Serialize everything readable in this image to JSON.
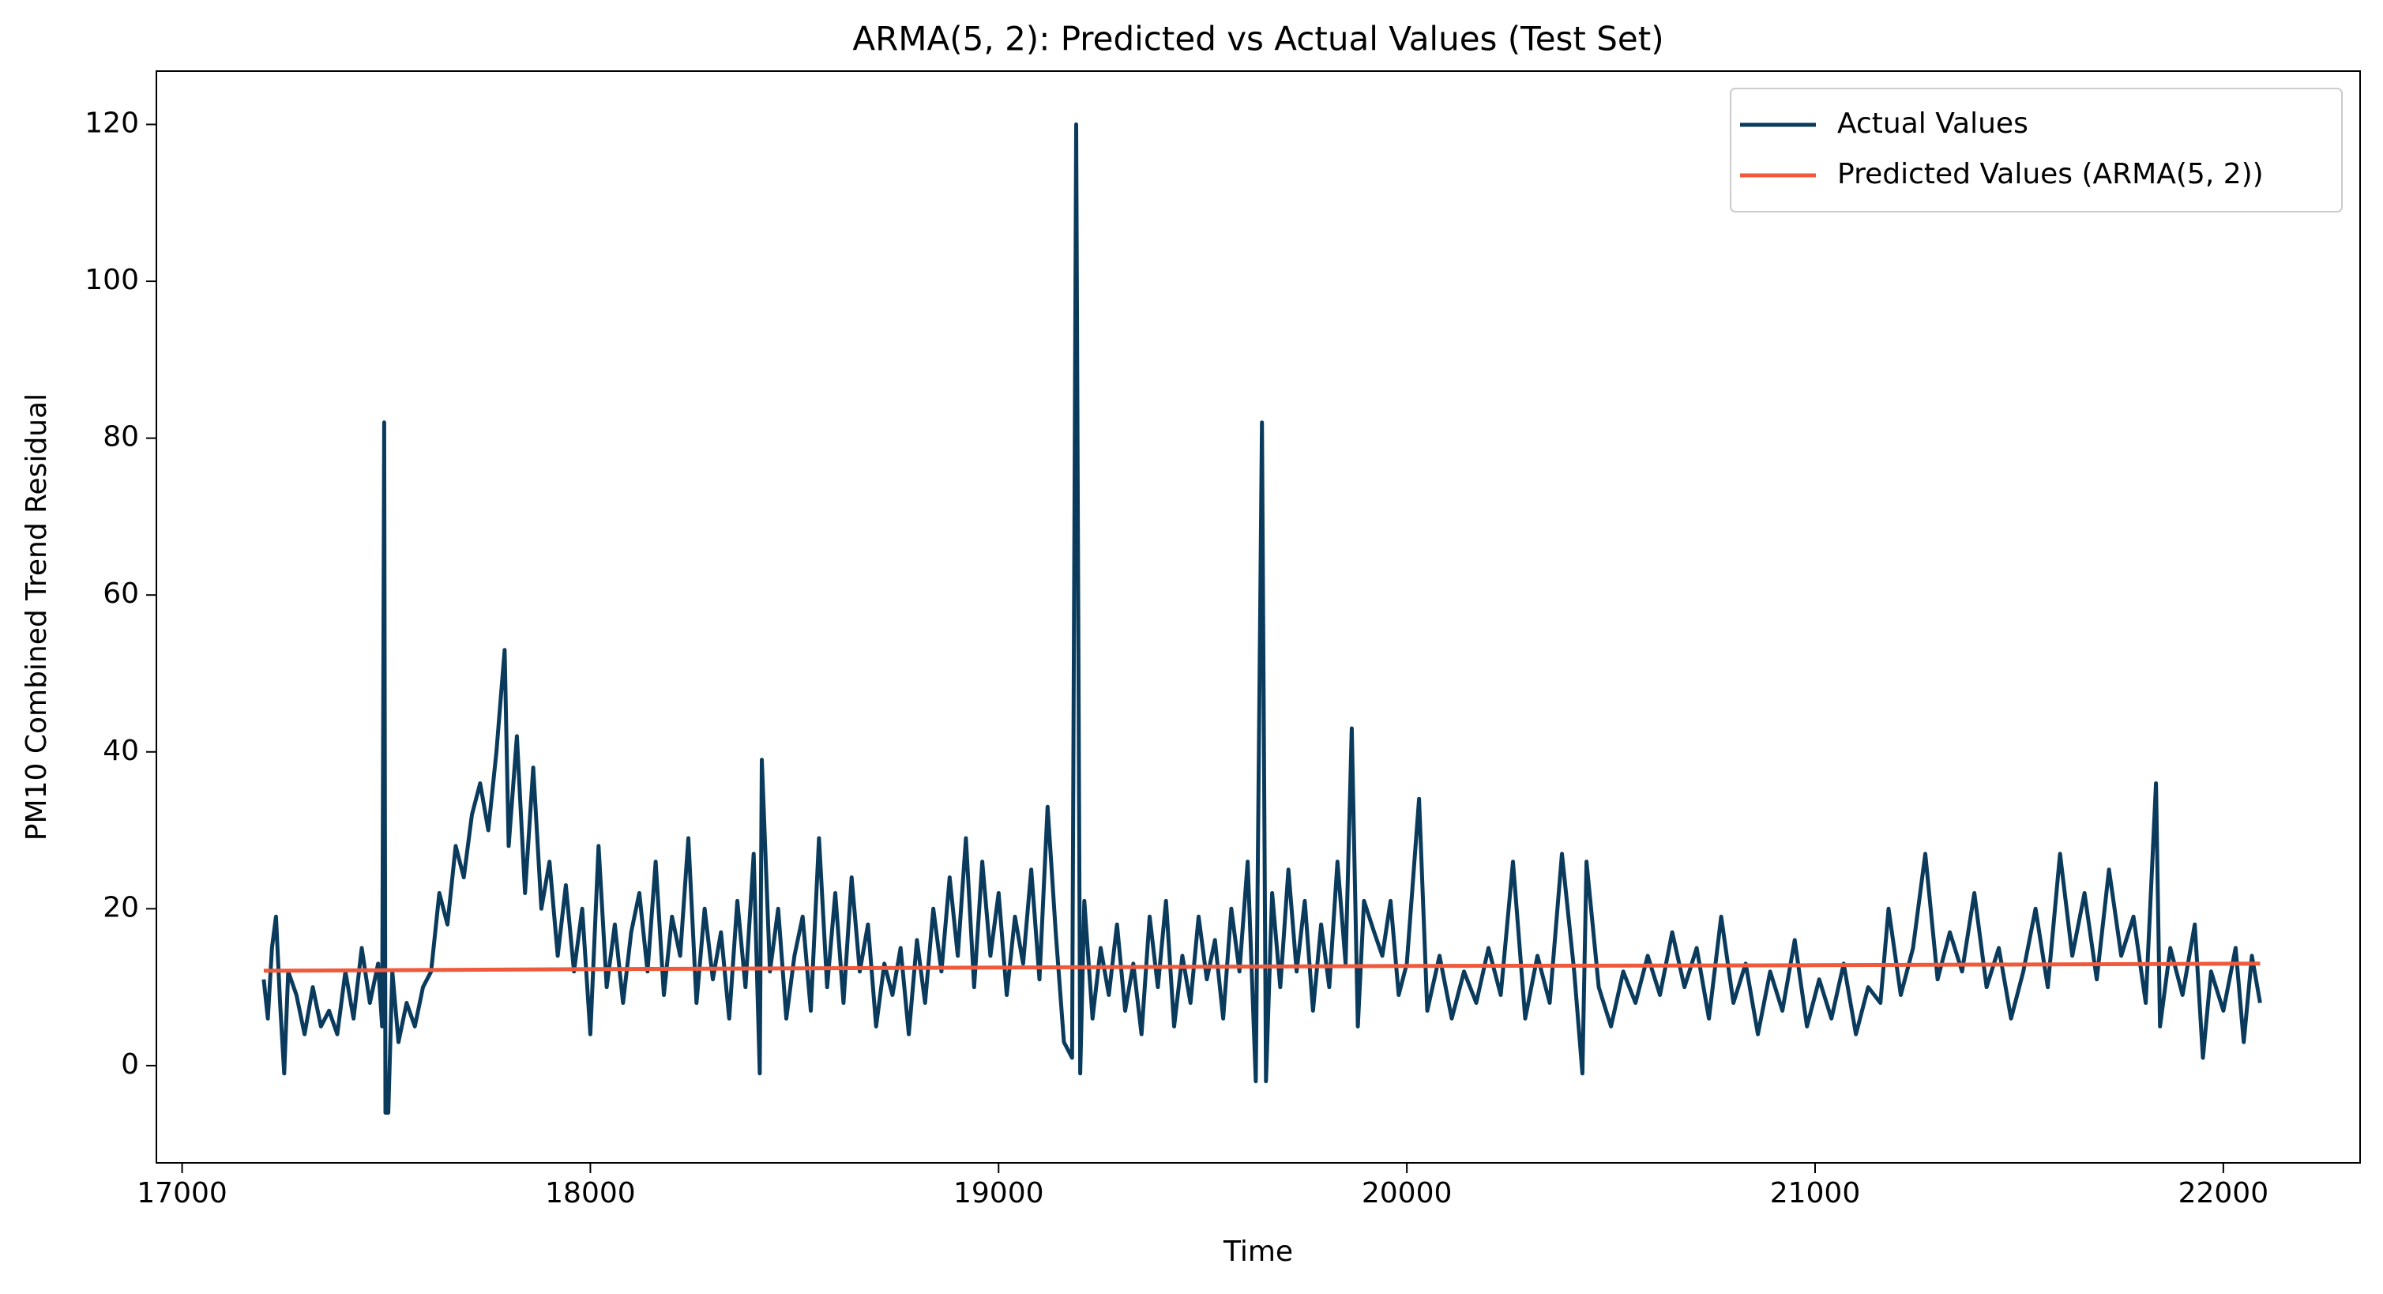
{
  "chart_data": {
    "type": "line",
    "title": "ARMA(5, 2): Predicted vs Actual Values (Test Set)",
    "xlabel": "Time",
    "ylabel": "PM10 Combined Trend Residual",
    "xlim": [
      16937,
      22335
    ],
    "ylim": [
      -12.4,
      126.8
    ],
    "xticks": [
      17000,
      18000,
      19000,
      20000,
      21000,
      22000
    ],
    "yticks": [
      0,
      20,
      40,
      60,
      80,
      100,
      120
    ],
    "legend": "upper right",
    "series": [
      {
        "name": "Actual Values",
        "color": "#0b3b5c",
        "x": [
          17200,
          17210,
          17220,
          17230,
          17240,
          17250,
          17260,
          17280,
          17300,
          17320,
          17340,
          17360,
          17380,
          17400,
          17420,
          17440,
          17460,
          17480,
          17490,
          17495,
          17498,
          17505,
          17515,
          17530,
          17550,
          17570,
          17590,
          17610,
          17630,
          17650,
          17670,
          17690,
          17710,
          17730,
          17750,
          17770,
          17790,
          17800,
          17820,
          17840,
          17860,
          17880,
          17900,
          17920,
          17940,
          17960,
          17980,
          18000,
          18020,
          18040,
          18060,
          18080,
          18100,
          18120,
          18140,
          18160,
          18180,
          18200,
          18220,
          18240,
          18260,
          18280,
          18300,
          18320,
          18340,
          18360,
          18380,
          18400,
          18415,
          18420,
          18440,
          18460,
          18480,
          18500,
          18520,
          18540,
          18560,
          18580,
          18600,
          18620,
          18640,
          18660,
          18680,
          18700,
          18720,
          18740,
          18760,
          18780,
          18800,
          18820,
          18840,
          18860,
          18880,
          18900,
          18920,
          18940,
          18960,
          18980,
          19000,
          19020,
          19040,
          19060,
          19080,
          19100,
          19120,
          19140,
          19160,
          19180,
          19190,
          19200,
          19210,
          19230,
          19250,
          19270,
          19290,
          19310,
          19330,
          19350,
          19370,
          19390,
          19410,
          19430,
          19450,
          19470,
          19490,
          19510,
          19530,
          19550,
          19570,
          19590,
          19610,
          19630,
          19645,
          19655,
          19670,
          19690,
          19710,
          19730,
          19750,
          19770,
          19790,
          19810,
          19830,
          19850,
          19865,
          19880,
          19895,
          19920,
          19940,
          19960,
          19980,
          20000,
          20030,
          20050,
          20080,
          20110,
          20140,
          20170,
          20200,
          20230,
          20260,
          20290,
          20320,
          20350,
          20380,
          20410,
          20430,
          20440,
          20470,
          20500,
          20530,
          20560,
          20590,
          20620,
          20650,
          20680,
          20710,
          20740,
          20770,
          20800,
          20830,
          20860,
          20890,
          20920,
          20950,
          20980,
          21010,
          21040,
          21070,
          21100,
          21130,
          21160,
          21180,
          21210,
          21240,
          21270,
          21300,
          21330,
          21360,
          21390,
          21420,
          21450,
          21480,
          21510,
          21540,
          21570,
          21600,
          21630,
          21660,
          21690,
          21720,
          21750,
          21780,
          21810,
          21835,
          21845,
          21870,
          21900,
          21930,
          21950,
          21970,
          22000,
          22030,
          22050,
          22070,
          22090
        ],
        "values": [
          11,
          6,
          15,
          19,
          8,
          -1,
          12,
          9,
          4,
          10,
          5,
          7,
          4,
          12,
          6,
          15,
          8,
          13,
          5,
          82,
          -6,
          -6,
          12,
          3,
          8,
          5,
          10,
          12,
          22,
          18,
          28,
          24,
          32,
          36,
          30,
          40,
          53,
          28,
          42,
          22,
          38,
          20,
          26,
          14,
          23,
          12,
          20,
          4,
          28,
          10,
          18,
          8,
          17,
          22,
          12,
          26,
          9,
          19,
          14,
          29,
          8,
          20,
          11,
          17,
          6,
          21,
          10,
          27,
          -1,
          39,
          12,
          20,
          6,
          14,
          19,
          7,
          29,
          10,
          22,
          8,
          24,
          12,
          18,
          5,
          13,
          9,
          15,
          4,
          16,
          8,
          20,
          12,
          24,
          14,
          29,
          10,
          26,
          14,
          22,
          9,
          19,
          13,
          25,
          11,
          33,
          17,
          3,
          1,
          120,
          -1,
          21,
          6,
          15,
          9,
          18,
          7,
          13,
          4,
          19,
          10,
          21,
          5,
          14,
          8,
          19,
          11,
          16,
          6,
          20,
          12,
          26,
          -2,
          82,
          -2,
          22,
          10,
          25,
          12,
          21,
          7,
          18,
          10,
          26,
          13,
          43,
          5,
          21,
          17,
          14,
          21,
          9,
          13,
          34,
          7,
          14,
          6,
          12,
          8,
          15,
          9,
          26,
          6,
          14,
          8,
          27,
          12,
          -1,
          26,
          10,
          5,
          12,
          8,
          14,
          9,
          17,
          10,
          15,
          6,
          19,
          8,
          13,
          4,
          12,
          7,
          16,
          5,
          11,
          6,
          13,
          4,
          10,
          8,
          20,
          9,
          15,
          27,
          11,
          17,
          12,
          22,
          10,
          15,
          6,
          12,
          20,
          10,
          27,
          14,
          22,
          11,
          25,
          14,
          19,
          8,
          36,
          5,
          15,
          9,
          18,
          1,
          12,
          7,
          15,
          3,
          14,
          8
        ]
      },
      {
        "name": "Predicted Values (ARMA(5, 2))",
        "color": "#f05a3c",
        "x": [
          17200,
          18000,
          19000,
          20000,
          21000,
          22090
        ],
        "values": [
          12.1,
          12.3,
          12.5,
          12.7,
          12.8,
          13.0
        ]
      }
    ]
  }
}
